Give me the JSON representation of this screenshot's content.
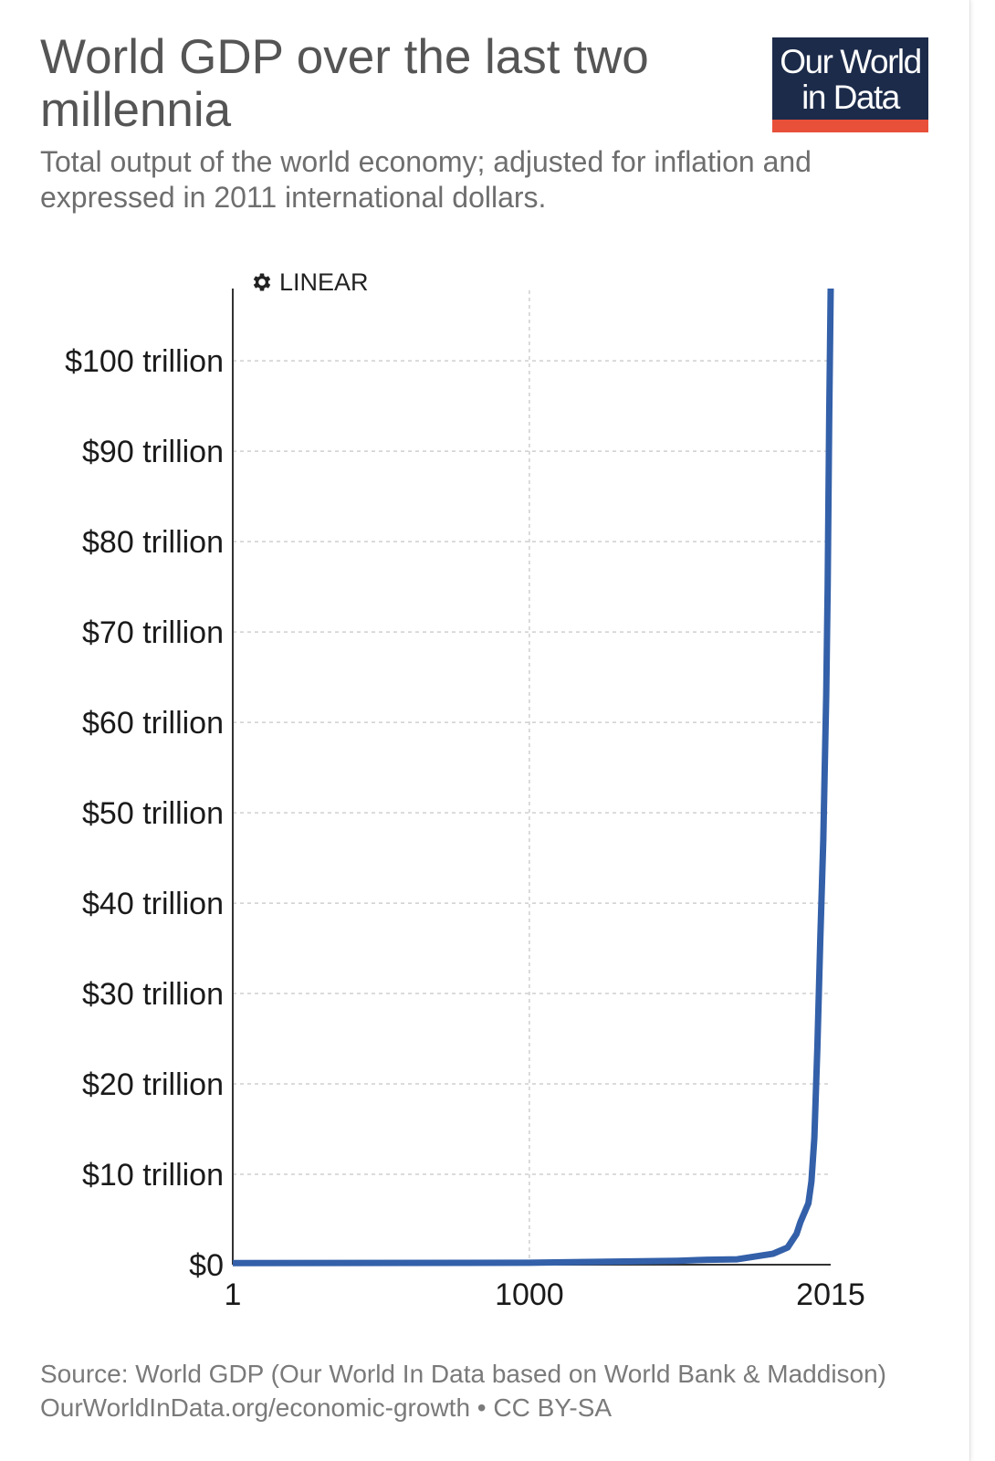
{
  "header": {
    "title": "World GDP over the last two millennia",
    "subtitle": "Total output of the world economy; adjusted for inflation and expressed in 2011 international dollars.",
    "logo_line1": "Our World",
    "logo_line2": "in Data"
  },
  "controls": {
    "scale_toggle": "LINEAR",
    "scale_icon": "gear-icon"
  },
  "footer": {
    "source": "Source: World GDP (Our World In Data based on World Bank & Maddison)",
    "url": "OurWorldInData.org/economic-growth",
    "separator": "•",
    "license": "CC BY-SA"
  },
  "colors": {
    "series": "#3360a9",
    "logo_bg": "#1c2b4a",
    "logo_bar": "#e8503a"
  },
  "chart_data": {
    "type": "line",
    "title": "World GDP over the last two millennia",
    "subtitle": "Total output of the world economy; adjusted for inflation and expressed in 2011 international dollars.",
    "xlabel": "",
    "ylabel": "",
    "xlim": [
      1,
      2015
    ],
    "ylim": [
      0,
      108
    ],
    "x_ticks": [
      1,
      1000,
      2015
    ],
    "x_tick_labels": [
      "1",
      "1000",
      "2015"
    ],
    "y_ticks": [
      0,
      10,
      20,
      30,
      40,
      50,
      60,
      70,
      80,
      90,
      100
    ],
    "y_tick_labels": [
      "$0",
      "$10 trillion",
      "$20 trillion",
      "$30 trillion",
      "$40 trillion",
      "$50 trillion",
      "$60 trillion",
      "$70 trillion",
      "$80 trillion",
      "$90 trillion",
      "$100 trillion"
    ],
    "grid": true,
    "series": [
      {
        "name": "World",
        "unit": "trillion international-$",
        "points": [
          [
            1,
            0.18
          ],
          [
            1000,
            0.21
          ],
          [
            1500,
            0.43
          ],
          [
            1600,
            0.55
          ],
          [
            1700,
            0.6
          ],
          [
            1820,
            1.2
          ],
          [
            1870,
            1.9
          ],
          [
            1900,
            3.4
          ],
          [
            1913,
            4.7
          ],
          [
            1940,
            6.8
          ],
          [
            1950,
            9.2
          ],
          [
            1960,
            14.0
          ],
          [
            1970,
            24.0
          ],
          [
            1980,
            36.0
          ],
          [
            1990,
            47.0
          ],
          [
            2000,
            63.0
          ],
          [
            2005,
            75.0
          ],
          [
            2010,
            94.0
          ],
          [
            2015,
            108.0
          ]
        ]
      }
    ]
  }
}
